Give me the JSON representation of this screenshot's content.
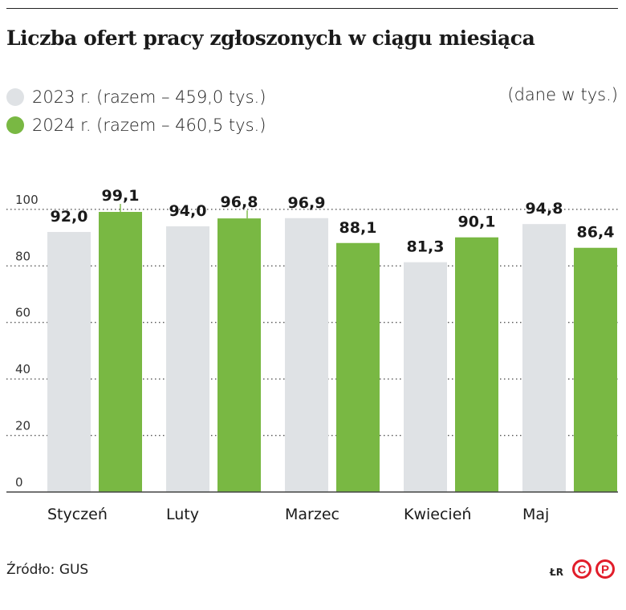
{
  "title": "Liczba ofert pracy zgłoszonych w ciągu miesiąca",
  "legend": [
    {
      "label": "2023 r. (razem – 459,0 tys.)",
      "color": "#dfe2e5"
    },
    {
      "label": "2024 r. (razem – 460,5 tys.)",
      "color": "#79b843"
    }
  ],
  "units_note": "(dane w tys.)",
  "source": "Źródło: GUS",
  "credit": "ŁR",
  "logo": {
    "name": "cp-logo",
    "letters": [
      "C",
      "P"
    ],
    "color": "#e11d2a"
  },
  "chart_data": {
    "type": "bar",
    "categories": [
      "Styczeń",
      "Luty",
      "Marzec",
      "Kwiecień",
      "Maj"
    ],
    "series": [
      {
        "name": "2023 r. (razem – 459,0 tys.)",
        "color": "#dfe2e5",
        "values": [
          92.0,
          94.0,
          96.9,
          81.3,
          94.8
        ],
        "labels": [
          "92,0",
          "94,0",
          "96,9",
          "81,3",
          "94,8"
        ]
      },
      {
        "name": "2024 r. (razem – 460,5 tys.)",
        "color": "#79b843",
        "values": [
          99.1,
          96.8,
          88.1,
          90.1,
          86.4
        ],
        "labels": [
          "99,1",
          "96,8",
          "88,1",
          "90,1",
          "86,4"
        ]
      }
    ],
    "yticks": [
      0,
      20,
      40,
      60,
      80,
      100
    ],
    "ylim": [
      0,
      105
    ],
    "grid": "dotted horizontal",
    "xlabel": "",
    "ylabel": ""
  }
}
